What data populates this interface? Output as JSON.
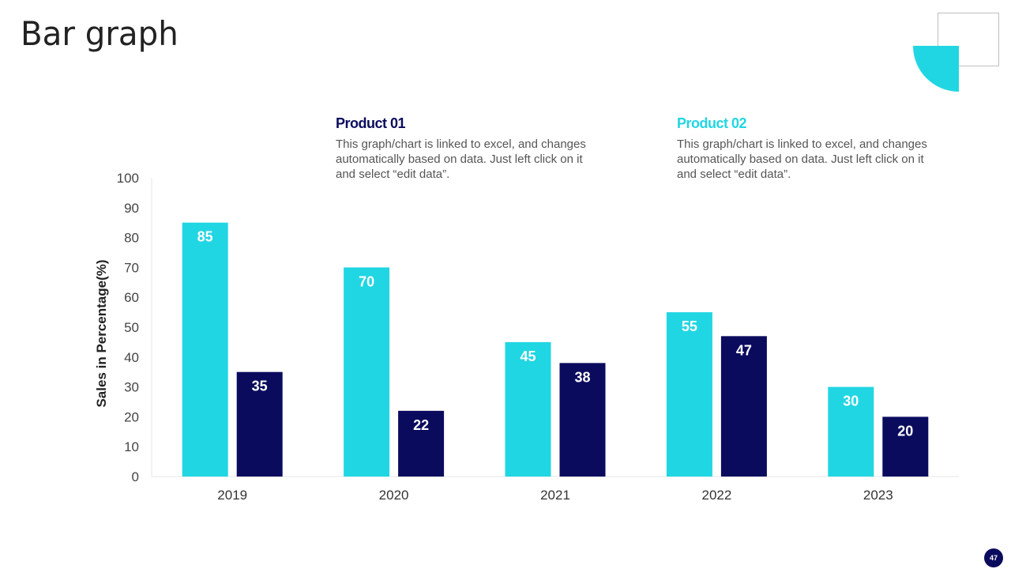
{
  "slide": {
    "title": "Bar graph",
    "page_number": "47"
  },
  "legend": [
    {
      "name": "Product 01",
      "color": "#0b0b5e",
      "description": "This graph/chart is linked to excel, and changes automatically based on data. Just left click on it and select “edit data”."
    },
    {
      "name": "Product 02",
      "color": "#21d6e3",
      "description": "This graph/chart is linked to excel, and changes automatically based on data. Just left click on it and select “edit data”."
    }
  ],
  "chart_data": {
    "type": "bar",
    "title": "Bar graph",
    "xlabel": "",
    "ylabel": "Sales in Percentage(%)",
    "ylim": [
      0,
      100
    ],
    "yticks": [
      0,
      10,
      20,
      30,
      40,
      50,
      60,
      70,
      80,
      90,
      100
    ],
    "categories": [
      "2019",
      "2020",
      "2021",
      "2022",
      "2023"
    ],
    "series": [
      {
        "name": "Product 02",
        "color": "#21d6e3",
        "values": [
          85,
          70,
          45,
          55,
          30
        ]
      },
      {
        "name": "Product 01",
        "color": "#0b0b5e",
        "values": [
          35,
          22,
          38,
          47,
          20
        ]
      }
    ],
    "data_labels": true,
    "grid": false
  }
}
